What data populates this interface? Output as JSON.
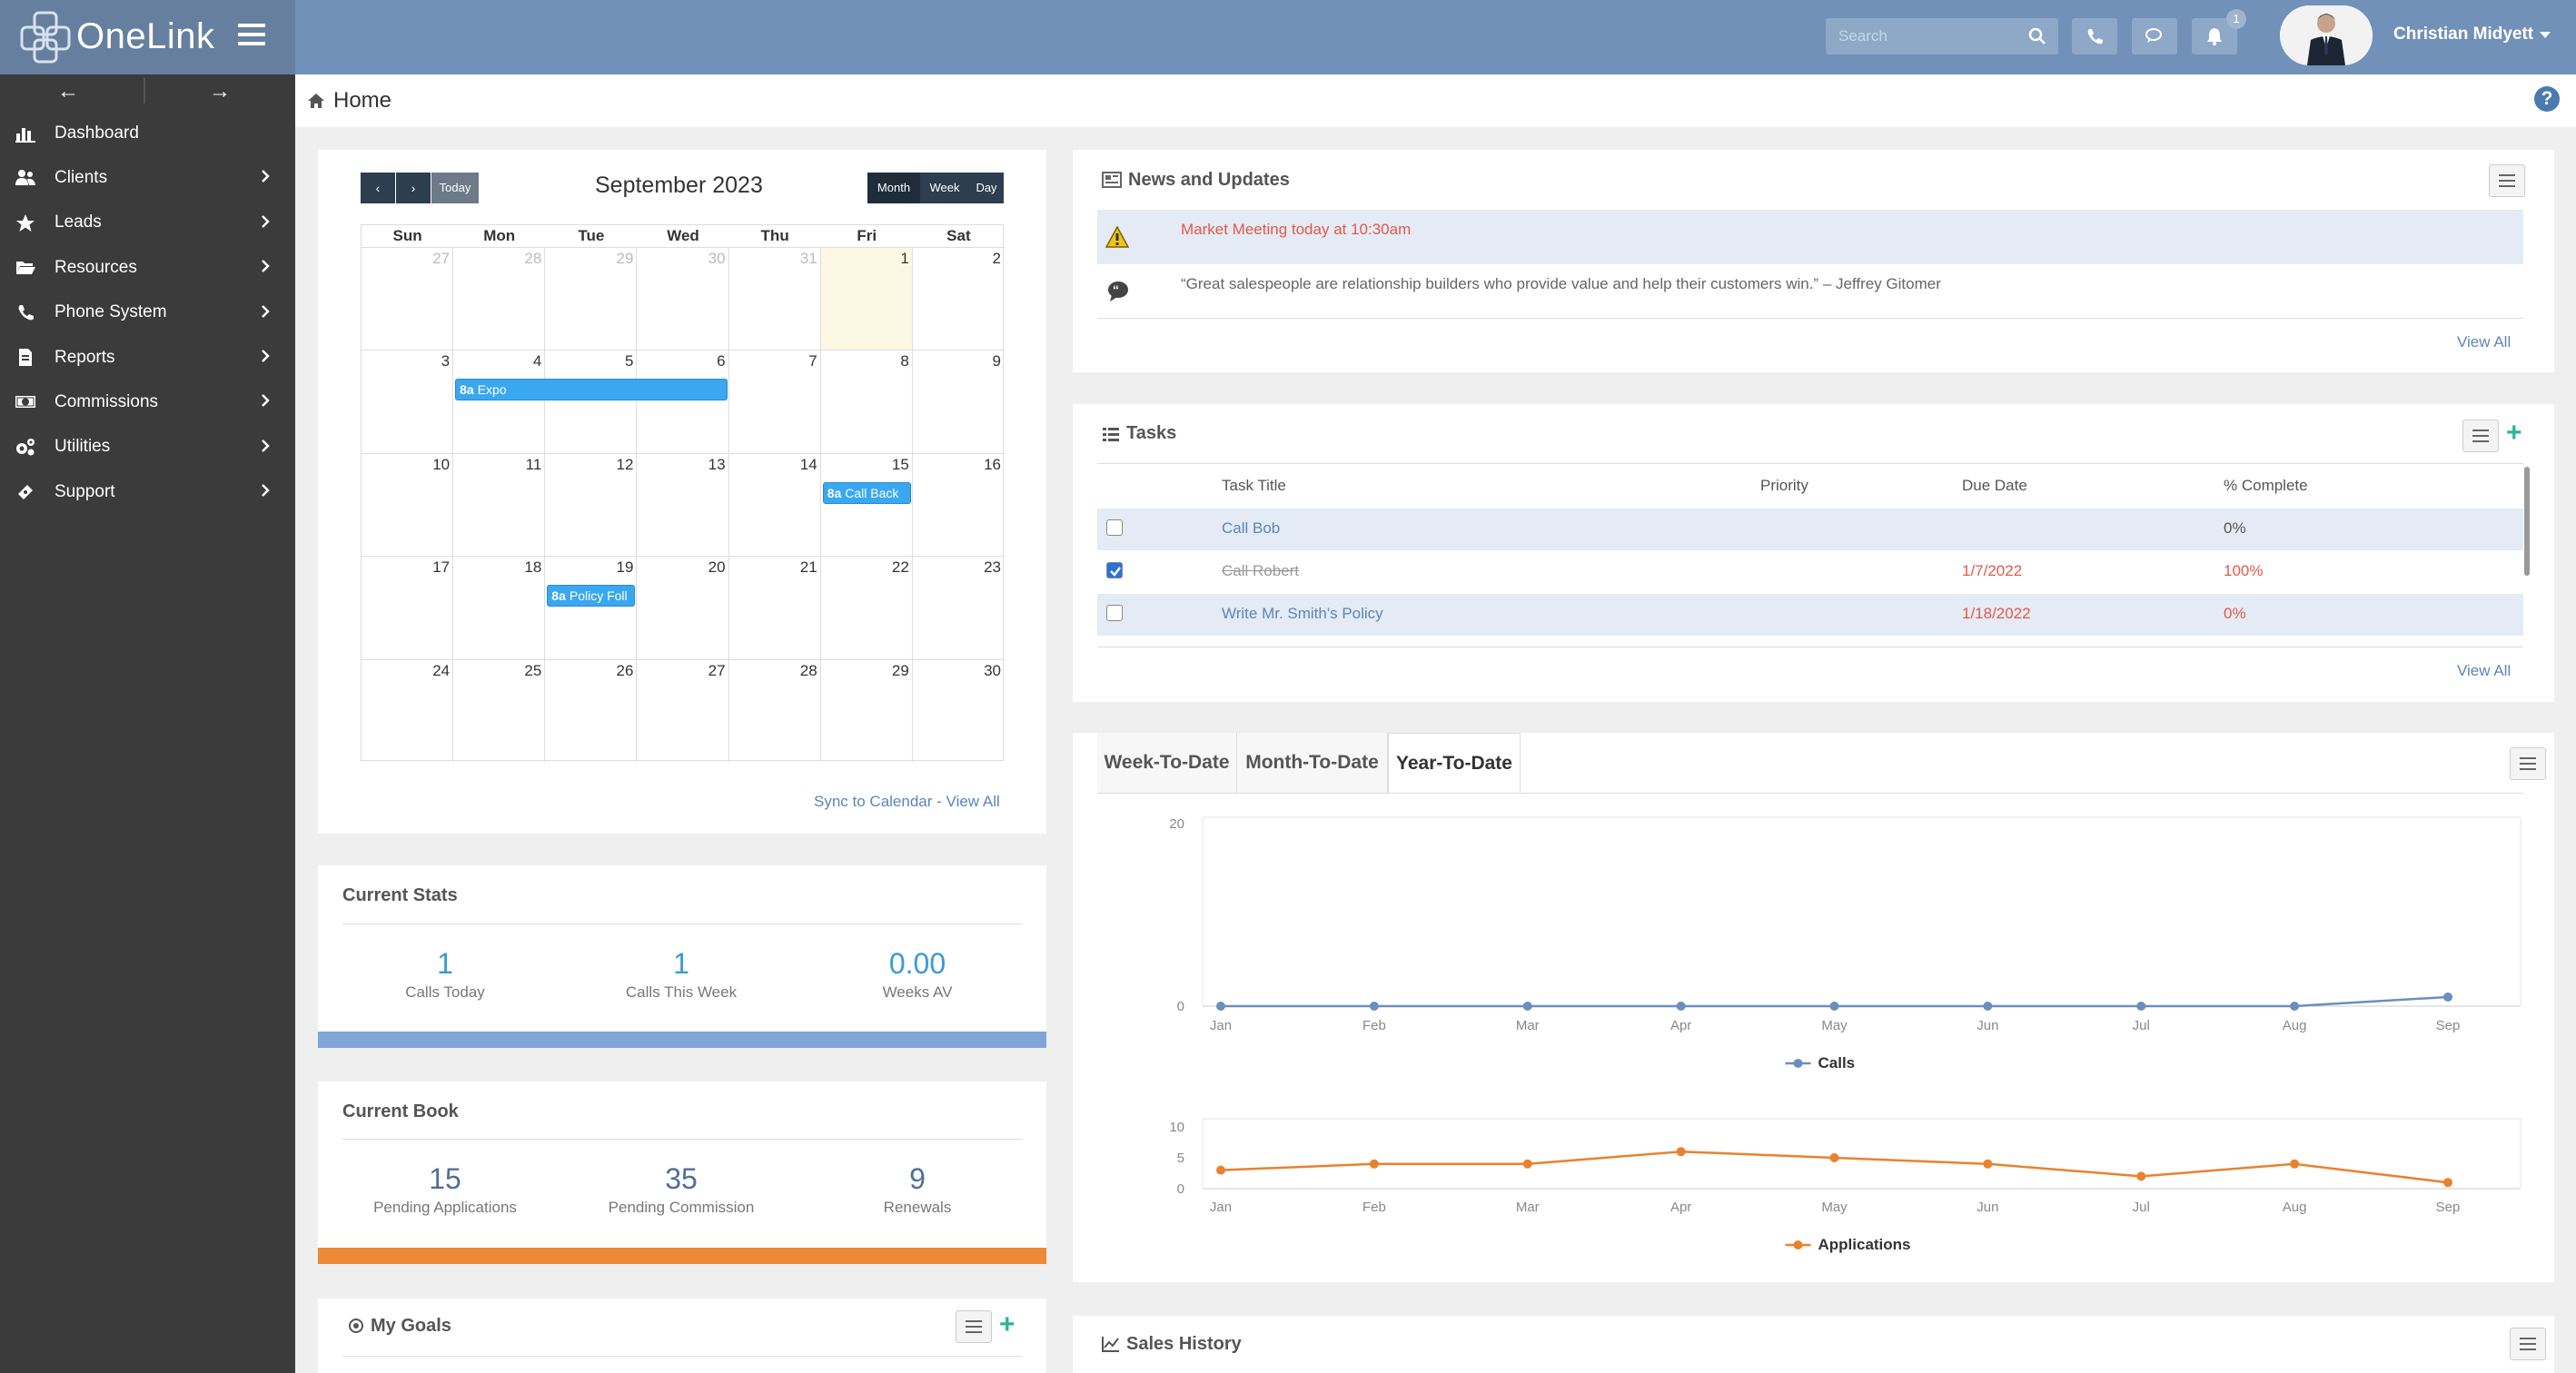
{
  "app": {
    "name": "OneLink"
  },
  "sidebar": {
    "items": [
      {
        "label": "Dashboard",
        "icon": "bar-chart-icon",
        "chevron": false
      },
      {
        "label": "Clients",
        "icon": "users-icon",
        "chevron": true
      },
      {
        "label": "Leads",
        "icon": "star-icon",
        "chevron": true
      },
      {
        "label": "Resources",
        "icon": "folder-open-icon",
        "chevron": true
      },
      {
        "label": "Phone System",
        "icon": "phone-icon",
        "chevron": true
      },
      {
        "label": "Reports",
        "icon": "file-icon",
        "chevron": true
      },
      {
        "label": "Commissions",
        "icon": "money-icon",
        "chevron": true
      },
      {
        "label": "Utilities",
        "icon": "cogs-icon",
        "chevron": true
      },
      {
        "label": "Support",
        "icon": "ticket-icon",
        "chevron": true
      }
    ]
  },
  "topbar": {
    "search_placeholder": "Search",
    "notification_count": "1",
    "user_name": "Christian Midyett"
  },
  "breadcrumb": {
    "title": "Home"
  },
  "calendar": {
    "title": "September 2023",
    "today_label": "Today",
    "views": [
      "Month",
      "Week",
      "Day"
    ],
    "days_of_week": [
      "Sun",
      "Mon",
      "Tue",
      "Wed",
      "Thu",
      "Fri",
      "Sat"
    ],
    "weeks": [
      [
        "27",
        "28",
        "29",
        "30",
        "31",
        "1",
        "2"
      ],
      [
        "3",
        "4",
        "5",
        "6",
        "7",
        "8",
        "9"
      ],
      [
        "10",
        "11",
        "12",
        "13",
        "14",
        "15",
        "16"
      ],
      [
        "17",
        "18",
        "19",
        "20",
        "21",
        "22",
        "23"
      ],
      [
        "24",
        "25",
        "26",
        "27",
        "28",
        "29",
        "30"
      ]
    ],
    "events": [
      {
        "time": "8a",
        "title": "Expo"
      },
      {
        "time": "8a",
        "title": "Call Back"
      },
      {
        "time": "8a",
        "title": "Policy Foll"
      }
    ],
    "sync_label": "Sync to Calendar",
    "separator": "-",
    "view_all": "View All"
  },
  "current_stats": {
    "title": "Current Stats",
    "items": [
      {
        "value": "1",
        "label": "Calls Today"
      },
      {
        "value": "1",
        "label": "Calls This Week"
      },
      {
        "value": "0.00",
        "label": "Weeks AV"
      }
    ]
  },
  "current_book": {
    "title": "Current Book",
    "items": [
      {
        "value": "15",
        "label": "Pending Applications"
      },
      {
        "value": "35",
        "label": "Pending Commission"
      },
      {
        "value": "9",
        "label": "Renewals"
      }
    ]
  },
  "my_goals": {
    "title": "My Goals"
  },
  "news": {
    "title": "News and Updates",
    "items": [
      {
        "icon": "warning-icon",
        "text": "Market Meeting today at 10:30am"
      },
      {
        "icon": "quote-icon",
        "text": "“Great salespeople are relationship builders who provide value and help their customers win.” – Jeffrey Gitomer"
      }
    ],
    "view_all": "View All"
  },
  "tasks": {
    "title": "Tasks",
    "columns": [
      "Task Title",
      "Priority",
      "Due Date",
      "% Complete"
    ],
    "rows": [
      {
        "checked": false,
        "title": "Call Bob",
        "priority": "",
        "due": "",
        "complete": "0%"
      },
      {
        "checked": true,
        "title": "Call Robert",
        "priority": "",
        "due": "1/7/2022",
        "complete": "100%"
      },
      {
        "checked": false,
        "title": "Write Mr. Smith's Policy",
        "priority": "",
        "due": "1/18/2022",
        "complete": "0%"
      }
    ],
    "view_all": "View All"
  },
  "performance": {
    "tabs": [
      "Week-To-Date",
      "Month-To-Date",
      "Year-To-Date"
    ],
    "active_tab": "Year-To-Date"
  },
  "chart_data": [
    {
      "type": "line",
      "categories": [
        "Jan",
        "Feb",
        "Mar",
        "Apr",
        "May",
        "Jun",
        "Jul",
        "Aug",
        "Sep"
      ],
      "series": [
        {
          "name": "Calls",
          "values": [
            0,
            0,
            0,
            0,
            0,
            0,
            0,
            0,
            1
          ],
          "color": "#6a8fbd"
        }
      ],
      "ylim": [
        0,
        20
      ],
      "yticks": [
        "0",
        "20"
      ],
      "grid": true,
      "legend": "bottom"
    },
    {
      "type": "line",
      "categories": [
        "Jan",
        "Feb",
        "Mar",
        "Apr",
        "May",
        "Jun",
        "Jul",
        "Aug",
        "Sep"
      ],
      "series": [
        {
          "name": "Applications",
          "values": [
            3,
            4,
            4,
            6,
            5,
            4,
            2,
            4,
            1
          ],
          "color": "#e8822e"
        }
      ],
      "ylim": [
        0,
        10
      ],
      "yticks": [
        "0",
        "5",
        "10"
      ],
      "grid": true,
      "legend": "bottom"
    }
  ],
  "sales_history": {
    "title": "Sales History"
  }
}
